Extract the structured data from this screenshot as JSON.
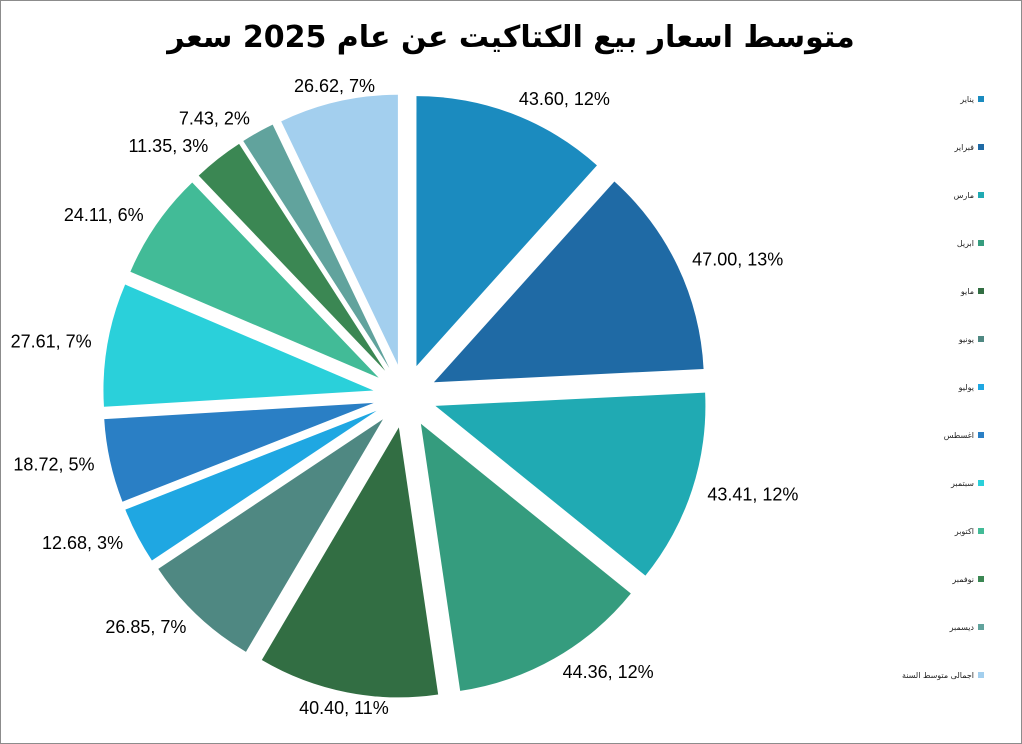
{
  "chart_data": {
    "type": "pie",
    "title": "متوسط اسعار بيع الكتاكيت عن عام 2025 سعر",
    "categories": [
      "يناير",
      "فبراير",
      "مارس",
      "ابريل",
      "مايو",
      "يونيو",
      "يوليو",
      "اغسطس",
      "سبتمبر",
      "اكتوبر",
      "نوفمبر",
      "ديسمبر",
      "اجمالى متوسط السنة"
    ],
    "values": [
      43.6,
      47.0,
      43.41,
      44.36,
      40.4,
      26.85,
      12.68,
      18.72,
      27.61,
      24.11,
      11.35,
      7.43,
      26.62
    ],
    "data_labels": [
      "43.60, 12%",
      "47.00, 13%",
      "43.41, 12%",
      "44.36, 12%",
      "40.40, 11%",
      "26.85, 7%",
      "12.68, 3%",
      "18.72, 5%",
      "27.61, 7%",
      "24.11, 6%",
      "11.35, 3%",
      "7.43, 2%",
      "26.62, 7%"
    ],
    "colors": [
      "#1b8bbf",
      "#1f6aa5",
      "#20aab3",
      "#359c7e",
      "#326e43",
      "#4f8882",
      "#1fa7e2",
      "#2a7fc5",
      "#2ad0da",
      "#42bb97",
      "#3b8753",
      "#61a39d",
      "#a3cfee"
    ],
    "exploded": true,
    "legend_position": "right"
  }
}
